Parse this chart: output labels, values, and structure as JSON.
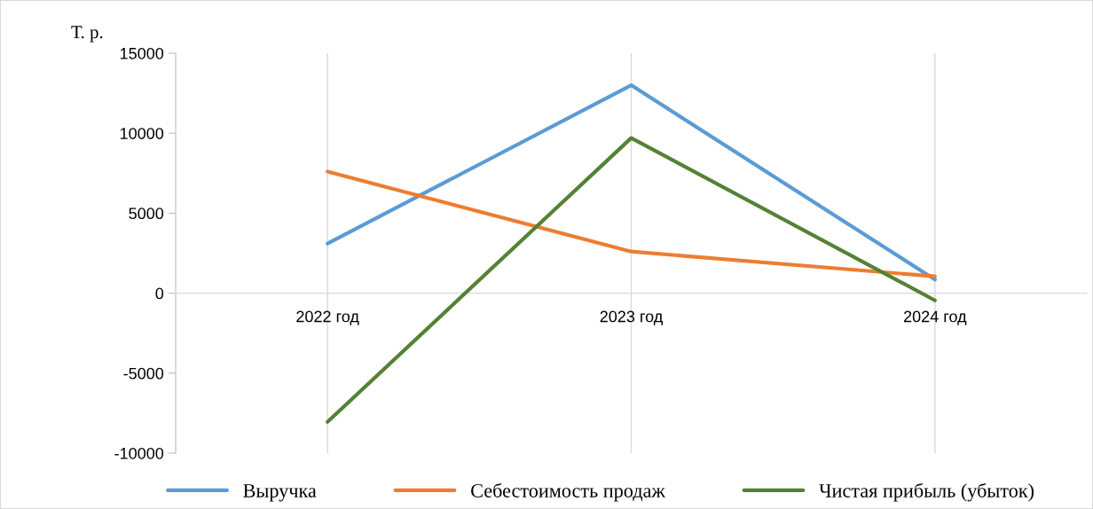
{
  "chart_data": {
    "type": "line",
    "ylabel": "Т. р.",
    "categories": [
      "2022 год",
      "2023 год",
      "2024 год"
    ],
    "series": [
      {
        "name": "Выручка",
        "color": "#5b9bd5",
        "values": [
          3100,
          13000,
          850
        ]
      },
      {
        "name": "Себестоимость продаж",
        "color": "#ed7d31",
        "values": [
          7600,
          2600,
          1050
        ]
      },
      {
        "name": "Чистая прибыль (убыток)",
        "color": "#548235",
        "values": [
          -8050,
          9700,
          -450
        ]
      }
    ],
    "ylim": [
      -10000,
      15000
    ],
    "yticks": [
      -10000,
      -5000,
      0,
      5000,
      10000,
      15000
    ],
    "grid": "x",
    "legend": "bottom",
    "marker": "none",
    "line_style": "solid"
  }
}
